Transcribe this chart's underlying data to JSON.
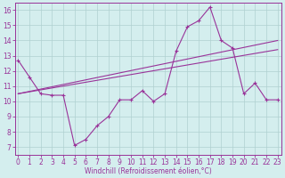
{
  "xlabel": "Windchill (Refroidissement éolien,°C)",
  "background_color": "#d4eeee",
  "grid_color": "#b0d0d0",
  "line_color": "#993399",
  "x_values": [
    0,
    1,
    2,
    3,
    4,
    5,
    6,
    7,
    8,
    9,
    10,
    11,
    12,
    13,
    14,
    15,
    16,
    17,
    18,
    19,
    20,
    21,
    22,
    23
  ],
  "windchill_values": [
    12.7,
    11.6,
    10.5,
    10.4,
    10.4,
    7.1,
    7.5,
    8.4,
    9.0,
    10.1,
    10.1,
    10.7,
    10.0,
    10.5,
    13.3,
    14.9,
    15.3,
    16.2,
    14.0,
    13.5,
    10.5,
    11.2,
    10.1,
    10.1
  ],
  "trend_line1_start": 10.5,
  "trend_line1_end": 14.0,
  "trend_line2_start": 10.5,
  "trend_line2_end": 13.4,
  "ylim": [
    6.5,
    16.5
  ],
  "xlim": [
    -0.3,
    23.3
  ],
  "yticks": [
    7,
    8,
    9,
    10,
    11,
    12,
    13,
    14,
    15,
    16
  ],
  "xticks": [
    0,
    1,
    2,
    3,
    4,
    5,
    6,
    7,
    8,
    9,
    10,
    11,
    12,
    13,
    14,
    15,
    16,
    17,
    18,
    19,
    20,
    21,
    22,
    23
  ],
  "tick_fontsize": 5.5,
  "xlabel_fontsize": 5.5
}
